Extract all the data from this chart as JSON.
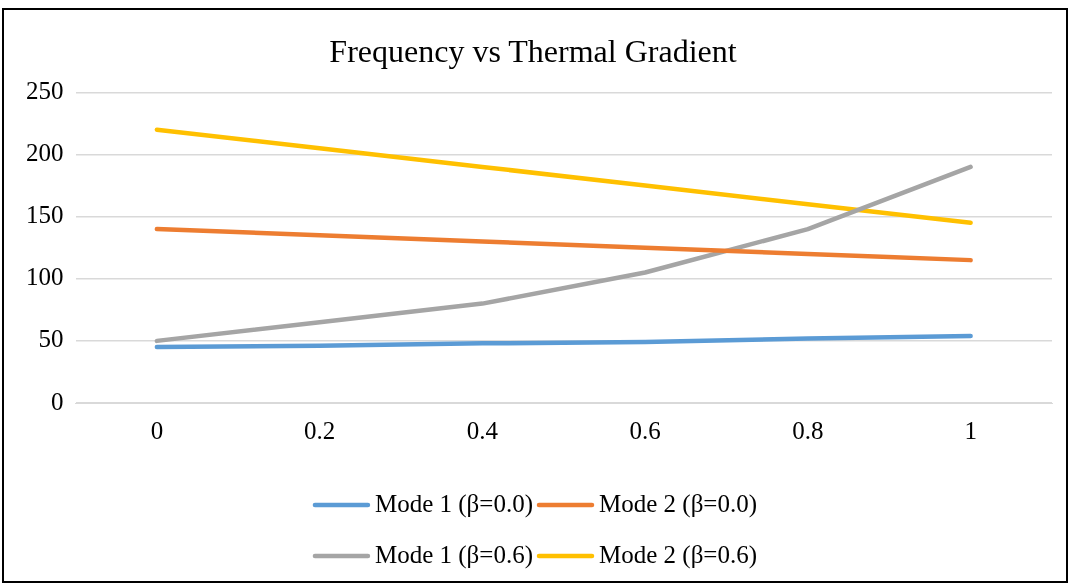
{
  "chart_data": {
    "type": "line",
    "title": "Frequency vs Thermal Gradient",
    "categories": [
      "0",
      "0.2",
      "0.4",
      "0.6",
      "0.8",
      "1"
    ],
    "series": [
      {
        "name": "Mode 1 (β=0.0)",
        "color": "#5b9bd5",
        "values": [
          45,
          46,
          48,
          49,
          52,
          54
        ]
      },
      {
        "name": "Mode 2 (β=0.0)",
        "color": "#ed7d31",
        "values": [
          140,
          135,
          130,
          125,
          120,
          115
        ]
      },
      {
        "name": "Mode 1 (β=0.6)",
        "color": "#a5a5a5",
        "values": [
          50,
          65,
          80,
          105,
          140,
          190
        ]
      },
      {
        "name": "Mode 2 (β=0.6)",
        "color": "#ffc000",
        "values": [
          220,
          205,
          190,
          175,
          160,
          145
        ]
      }
    ],
    "ylim": [
      0,
      250
    ],
    "yticks": [
      0,
      50,
      100,
      150,
      200,
      250
    ],
    "grid": "y",
    "legend": "bottom",
    "marker": "none",
    "line_style": "solid"
  }
}
